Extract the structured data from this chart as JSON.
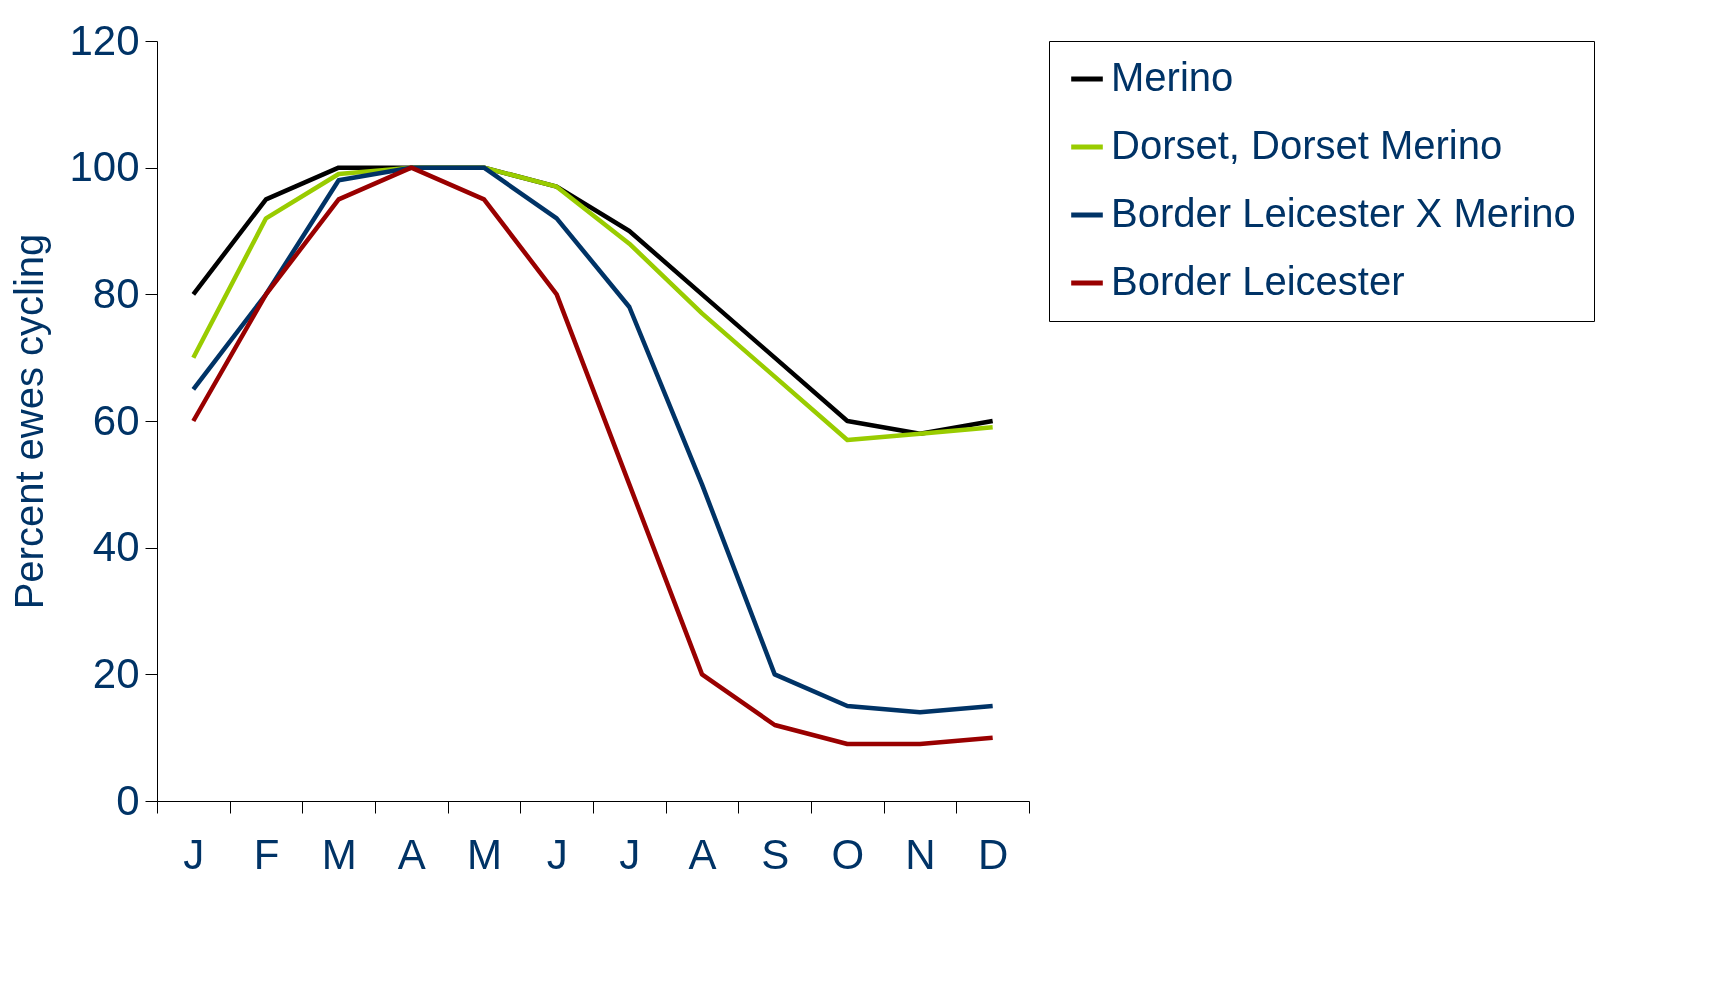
{
  "chart_data": {
    "type": "line",
    "ylabel": "Percent ewes cycling",
    "categories": [
      "J",
      "F",
      "M",
      "A",
      "M",
      "J",
      "J",
      "A",
      "S",
      "O",
      "N",
      "D"
    ],
    "series": [
      {
        "name": "Merino",
        "color": "#000000",
        "values": [
          80,
          95,
          100,
          100,
          100,
          97,
          90,
          80,
          70,
          60,
          58,
          60
        ]
      },
      {
        "name": "Dorset, Dorset Merino",
        "color": "#99cc00",
        "values": [
          70,
          92,
          99,
          100,
          100,
          97,
          88,
          77,
          67,
          57,
          58,
          59
        ]
      },
      {
        "name": "Border Leicester X Merino",
        "color": "#003366",
        "values": [
          65,
          80,
          98,
          100,
          100,
          92,
          78,
          50,
          20,
          15,
          14,
          15
        ]
      },
      {
        "name": "Border Leicester",
        "color": "#990000",
        "values": [
          60,
          80,
          95,
          100,
          95,
          80,
          50,
          20,
          12,
          9,
          9,
          10
        ]
      }
    ],
    "ylim": [
      0,
      120
    ],
    "yticks": [
      0,
      20,
      40,
      60,
      80,
      100,
      120
    ],
    "legend": "right"
  }
}
